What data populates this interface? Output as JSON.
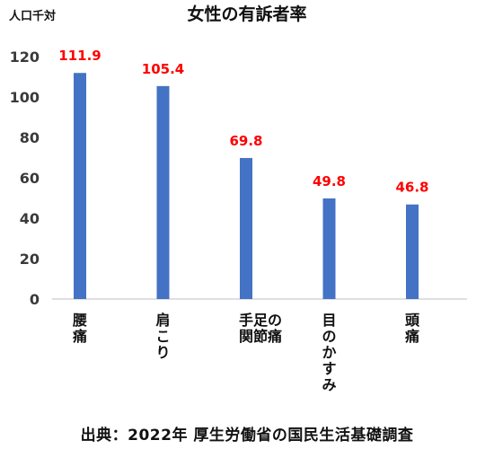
{
  "chart_data": {
    "type": "bar",
    "title": "女性の有訴者率",
    "ylabel": "人口千対",
    "xlabel": "",
    "categories": [
      "腰痛",
      "肩こり",
      "手足の関節痛",
      "目のかすみ",
      "頭痛"
    ],
    "category_lines": [
      [
        "腰",
        "痛"
      ],
      [
        "肩",
        "こ",
        "り"
      ],
      [
        "手足の",
        "関節痛"
      ],
      [
        "目",
        "の",
        "か",
        "す",
        "み"
      ],
      [
        "頭",
        "痛"
      ]
    ],
    "values": [
      111.9,
      105.4,
      69.8,
      49.8,
      46.8
    ],
    "value_labels": [
      "111.9",
      "105.4",
      "69.8",
      "49.8",
      "46.8"
    ],
    "ylim": [
      0,
      120
    ],
    "yticks": [
      0,
      20,
      40,
      60,
      80,
      100,
      120
    ],
    "grid": false,
    "legend": "none",
    "bar_color": "#4472C4",
    "label_color": "#FF0000"
  },
  "source_text": "出典：2022年  厚生労働省の国民生活基礎調査"
}
